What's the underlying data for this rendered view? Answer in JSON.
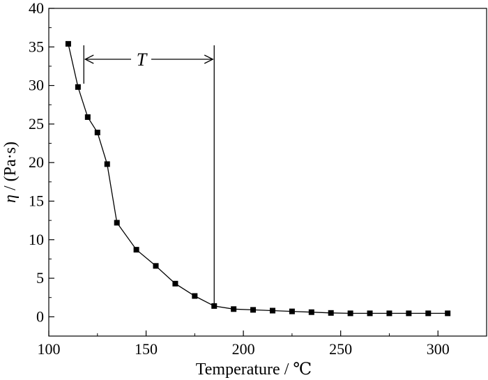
{
  "chart_data": {
    "type": "line",
    "title": "",
    "xlabel": "Temperature / ℃",
    "ylabel_symbol": "η",
    "ylabel_unit": " / (Pa·s)",
    "xlim": [
      100,
      325
    ],
    "ylim": [
      -2.5,
      40
    ],
    "xticks": [
      100,
      150,
      200,
      250,
      300
    ],
    "yticks": [
      0,
      5,
      10,
      15,
      20,
      25,
      30,
      35,
      40
    ],
    "grid": false,
    "legend": "none",
    "series": [
      {
        "marker": "square",
        "color": "#000000",
        "x": [
          110,
          115,
          120,
          125,
          130,
          135,
          145,
          155,
          165,
          175,
          185,
          195,
          205,
          215,
          225,
          235,
          245,
          255,
          265,
          275,
          285,
          295,
          305
        ],
        "y": [
          35.4,
          29.8,
          25.9,
          23.9,
          19.8,
          12.2,
          8.7,
          6.6,
          4.3,
          2.7,
          1.4,
          1.0,
          0.9,
          0.8,
          0.7,
          0.6,
          0.5,
          0.45,
          0.45,
          0.45,
          0.45,
          0.45,
          0.45
        ]
      }
    ],
    "annotations": [
      {
        "label": "T",
        "x_start": 118,
        "x_end": 185
      }
    ]
  }
}
